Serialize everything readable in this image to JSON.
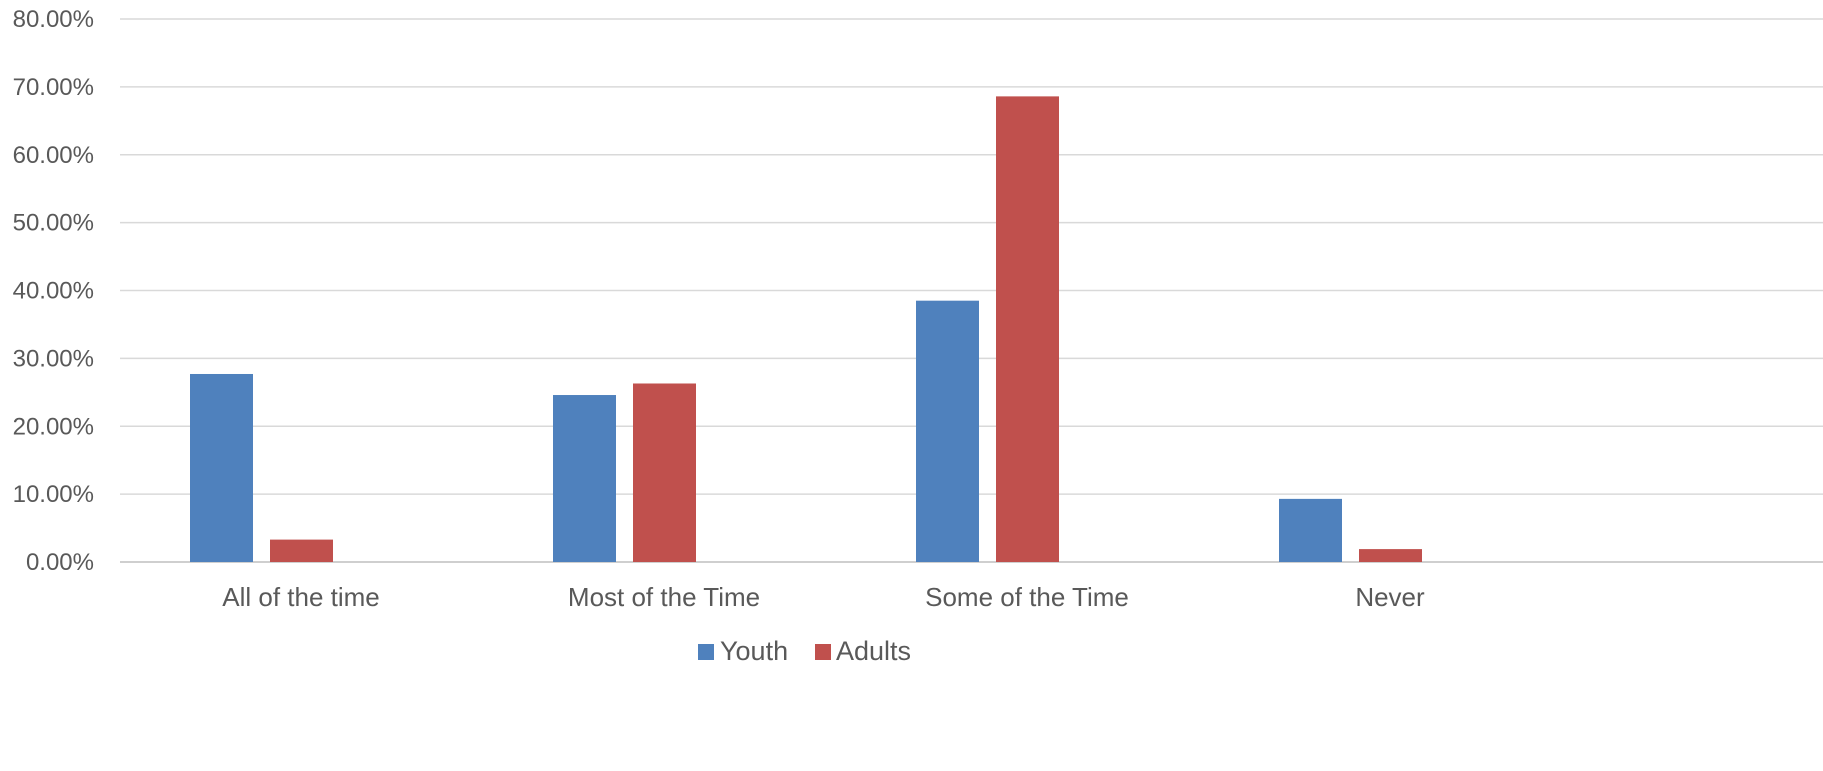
{
  "chart_data": {
    "type": "bar",
    "title": "",
    "xlabel": "",
    "ylabel": "",
    "categories": [
      "All of the time",
      "Most of the Time",
      "Some of the Time",
      "Never"
    ],
    "series": [
      {
        "name": "Youth",
        "color": "#4f81bd",
        "values": [
          0.277,
          0.246,
          0.385,
          0.093
        ]
      },
      {
        "name": "Adults",
        "color": "#c0504d",
        "values": [
          0.033,
          0.263,
          0.686,
          0.019
        ]
      }
    ],
    "ylim": [
      0,
      0.8
    ],
    "y_ticks": [
      0,
      0.1,
      0.2,
      0.3,
      0.4,
      0.5,
      0.6,
      0.7,
      0.8
    ],
    "y_tick_labels": [
      "0.00%",
      "10.00%",
      "20.00%",
      "30.00%",
      "40.00%",
      "50.00%",
      "60.00%",
      "70.00%",
      "80.00%"
    ],
    "grid": true,
    "legend": "bottom-center"
  }
}
